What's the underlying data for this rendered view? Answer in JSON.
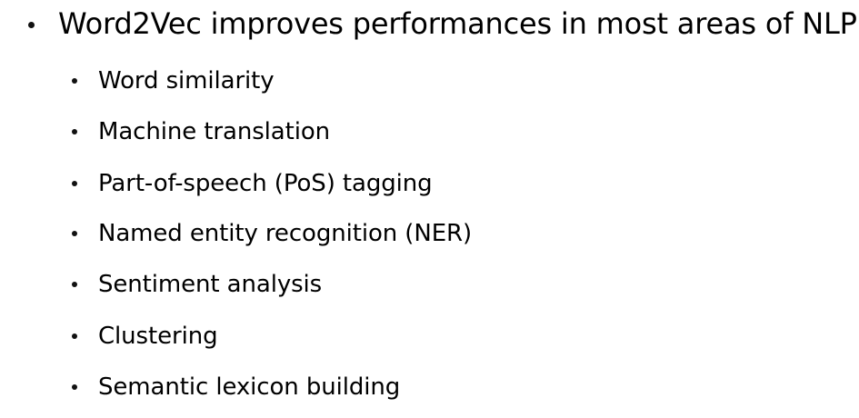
{
  "slide": {
    "main_bullet": "Word2Vec improves performances in most areas of NLP",
    "sub_bullets": [
      "Word similarity",
      "Machine translation",
      "Part-of-speech (PoS) tagging",
      "Named entity recognition (NER)",
      "Sentiment analysis",
      "Clustering",
      "Semantic lexicon building"
    ]
  }
}
